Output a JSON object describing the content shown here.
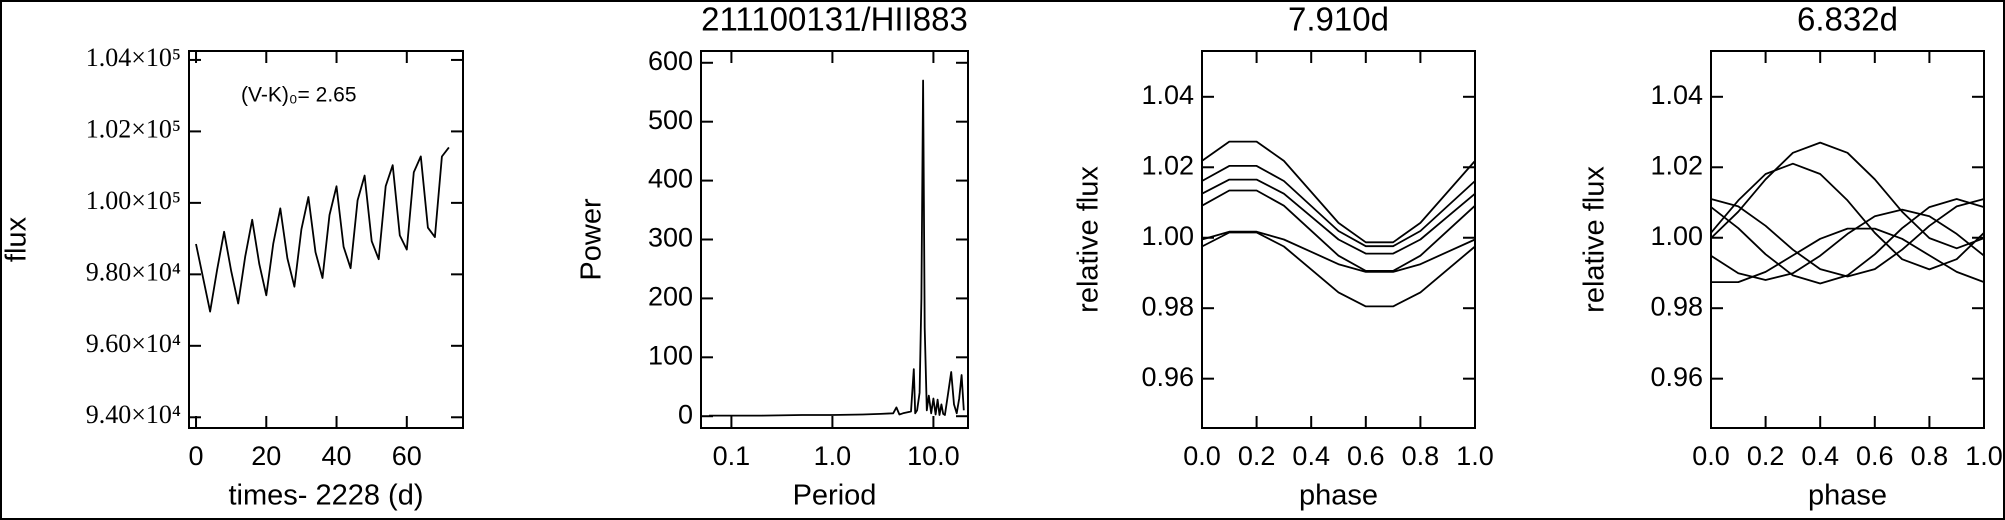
{
  "chart_data": [
    {
      "type": "line",
      "color": "#000000",
      "annotation": "(V-K)₀= 2.65",
      "xlabel": "times- 2228 (d)",
      "ylabel": "flux",
      "x": [
        0,
        2,
        4,
        6,
        8,
        10,
        12,
        14,
        16,
        18,
        20,
        22,
        24,
        26,
        28,
        30,
        32,
        34,
        36,
        38,
        40,
        42,
        44,
        46,
        48,
        50,
        52,
        54,
        56,
        58,
        60,
        62,
        64,
        66,
        68,
        70,
        72
      ],
      "values": [
        98850,
        97900,
        96958,
        98123,
        99191,
        98092,
        97185,
        98496,
        99527,
        98286,
        97413,
        98867,
        99846,
        98446,
        97655,
        99260,
        100163,
        98620,
        97899,
        99662,
        100464,
        98772,
        98173,
        100076,
        100762,
        98928,
        98424,
        100470,
        101055,
        99089,
        98692,
        100858,
        101300,
        99304,
        99041,
        101298,
        101552
      ],
      "xlim": [
        -2,
        76
      ],
      "xticks": [
        0,
        20,
        40,
        60
      ],
      "ylim": [
        93700,
        104250
      ],
      "yticks": [
        {
          "value": 94000,
          "label": "9.40×10⁴"
        },
        {
          "value": 96000,
          "label": "9.60×10⁴"
        },
        {
          "value": 98000,
          "label": "9.80×10⁴"
        },
        {
          "value": 100000,
          "label": "1.00×10⁵"
        },
        {
          "value": 102000,
          "label": "1.02×10⁵"
        },
        {
          "value": 104000,
          "label": "1.04×10⁵"
        }
      ]
    },
    {
      "type": "line",
      "color": "#000000",
      "title": "211100131/HII883",
      "xlabel": "Period",
      "ylabel": "Power",
      "xscale": "log",
      "x": [
        0.06,
        0.1,
        0.2,
        0.5,
        1,
        2,
        3,
        4,
        4.3,
        4.6,
        5,
        6,
        6.4,
        6.6,
        6.9,
        7.3,
        7.6,
        7.9,
        8.2,
        8.6,
        9,
        9.5,
        10,
        10.5,
        11,
        11.5,
        12,
        12.5,
        13,
        14,
        15,
        16,
        17,
        18,
        19,
        20
      ],
      "values": [
        1,
        1,
        1,
        2,
        2,
        3,
        4,
        5,
        15,
        3,
        5,
        8,
        80,
        5,
        10,
        40,
        200,
        570,
        150,
        10,
        35,
        5,
        30,
        3,
        28,
        2,
        20,
        4,
        2,
        40,
        75,
        20,
        5,
        30,
        70,
        10
      ],
      "xlim": [
        0.05,
        22
      ],
      "xticks": [
        0.1,
        {
          "value": 1,
          "label": "1.0"
        },
        {
          "value": 10,
          "label": "10.0"
        }
      ],
      "ylim": [
        -20,
        620
      ],
      "yticks": [
        0,
        100,
        200,
        300,
        400,
        500,
        600
      ]
    },
    {
      "type": "line",
      "color": "#000000",
      "title": "7.910d",
      "xlabel": "phase",
      "ylabel": "relative flux",
      "x": [
        0,
        0.1,
        0.2,
        0.3,
        0.4,
        0.5,
        0.6,
        0.7,
        0.8,
        0.9,
        1.0
      ],
      "series": [
        {
          "values": [
            1.0218,
            1.0273,
            1.0273,
            1.0218,
            1.013,
            1.0042,
            0.9987,
            0.9987,
            1.0042,
            1.013,
            1.0218
          ]
        },
        {
          "values": [
            1.0161,
            1.0204,
            1.0204,
            1.0161,
            1.009,
            1.0019,
            0.9976,
            0.9976,
            1.0019,
            1.009,
            1.0161
          ]
        },
        {
          "values": [
            1.0125,
            1.0165,
            1.0165,
            1.0125,
            1.006,
            0.9995,
            0.9955,
            0.9955,
            0.9995,
            1.006,
            1.0125
          ]
        },
        {
          "values": [
            1.0091,
            1.0134,
            1.0134,
            1.0091,
            1.002,
            0.9949,
            0.9906,
            0.9906,
            0.9949,
            1.002,
            1.0091
          ]
        },
        {
          "values": [
            0.9995,
            1.0017,
            1.0017,
            0.9995,
            0.996,
            0.9925,
            0.9903,
            0.9903,
            0.9925,
            0.996,
            0.9995
          ]
        },
        {
          "values": [
            0.9975,
            1.0015,
            1.0015,
            0.9975,
            0.991,
            0.9845,
            0.9805,
            0.9805,
            0.9845,
            0.991,
            0.9975
          ]
        }
      ],
      "xlim": [
        0,
        1
      ],
      "xticks": [
        {
          "value": 0,
          "label": "0.0"
        },
        0.2,
        0.4,
        0.6,
        0.8,
        {
          "value": 1,
          "label": "1.0"
        }
      ],
      "ylim": [
        0.946,
        1.053
      ],
      "yticks": [
        0.96,
        0.98,
        {
          "value": 1,
          "label": "1.00"
        },
        1.02,
        1.04
      ]
    },
    {
      "type": "line",
      "color": "#000000",
      "title": "6.832d",
      "xlabel": "phase",
      "ylabel": "relative flux",
      "x": [
        0,
        0.1,
        0.2,
        0.3,
        0.4,
        0.5,
        0.6,
        0.7,
        0.8,
        0.9,
        1.0
      ],
      "series": [
        {
          "values": [
            0.9999,
            1.0074,
            1.0166,
            1.0241,
            1.027,
            1.0241,
            1.0166,
            1.0074,
            0.9999,
            0.997,
            0.9999
          ]
        },
        {
          "values": [
            1.0014,
            1.0106,
            1.0181,
            1.021,
            1.0181,
            1.0106,
            1.0014,
            0.9939,
            0.991,
            0.9939,
            1.0014
          ]
        },
        {
          "values": [
            1.011,
            1.0089,
            1.0034,
            0.9966,
            0.9911,
            0.989,
            0.9911,
            0.9966,
            1.0034,
            1.0089,
            1.011
          ]
        },
        {
          "values": [
            1.0087,
            1.0027,
            0.9953,
            0.9893,
            0.987,
            0.9893,
            0.9953,
            1.0027,
            1.0087,
            1.011,
            1.0087
          ]
        },
        {
          "values": [
            0.9949,
            0.9899,
            0.988,
            0.9899,
            0.9949,
            1.0011,
            1.0061,
            1.008,
            1.0061,
            1.0011,
            0.9949
          ]
        },
        {
          "values": [
            0.9874,
            0.9874,
            0.9903,
            0.995,
            0.9997,
            1.0026,
            1.0026,
            0.9997,
            0.995,
            0.9903,
            0.9874
          ]
        }
      ],
      "xlim": [
        0,
        1
      ],
      "xticks": [
        {
          "value": 0,
          "label": "0.0"
        },
        0.2,
        0.4,
        0.6,
        0.8,
        {
          "value": 1,
          "label": "1.0"
        }
      ],
      "ylim": [
        0.946,
        1.053
      ],
      "yticks": [
        0.96,
        0.98,
        {
          "value": 1,
          "label": "1.00"
        },
        1.02,
        1.04
      ]
    }
  ]
}
